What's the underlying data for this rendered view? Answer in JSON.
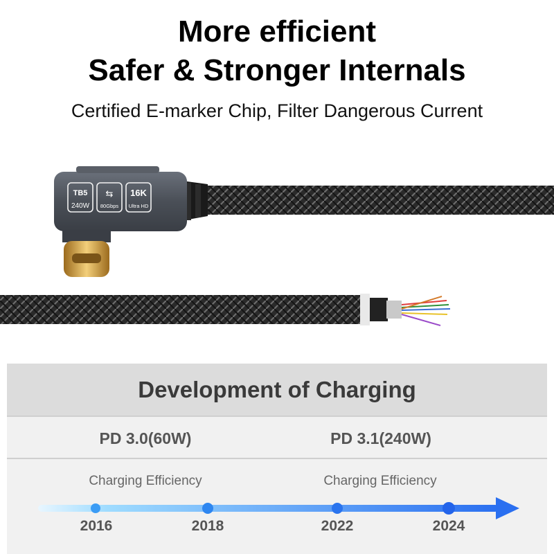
{
  "header": {
    "line1": "More efficient",
    "line2": "Safer & Stronger Internals",
    "subtitle": "Certified E-marker Chip, Filter Dangerous Current"
  },
  "connector_badges": [
    {
      "top": "TB5",
      "bottom": "240W"
    },
    {
      "top": "⇆",
      "bottom": "80Gbps"
    },
    {
      "top": "16K",
      "bottom": "Ultra HD"
    }
  ],
  "section": {
    "title": "Development of Charging",
    "standards": [
      "PD 3.0(60W)",
      "PD 3.1(240W)"
    ],
    "efficiency_labels": [
      "Charging Efficiency",
      "Charging Efficiency"
    ],
    "years": [
      "2016",
      "2018",
      "2022",
      "2024"
    ]
  },
  "colors": {
    "timeline_start": "#bfe6ff",
    "timeline_end": "#2a6ff0",
    "connector_gold": "#d7a74a",
    "housing_gray": "#4a4f57"
  }
}
